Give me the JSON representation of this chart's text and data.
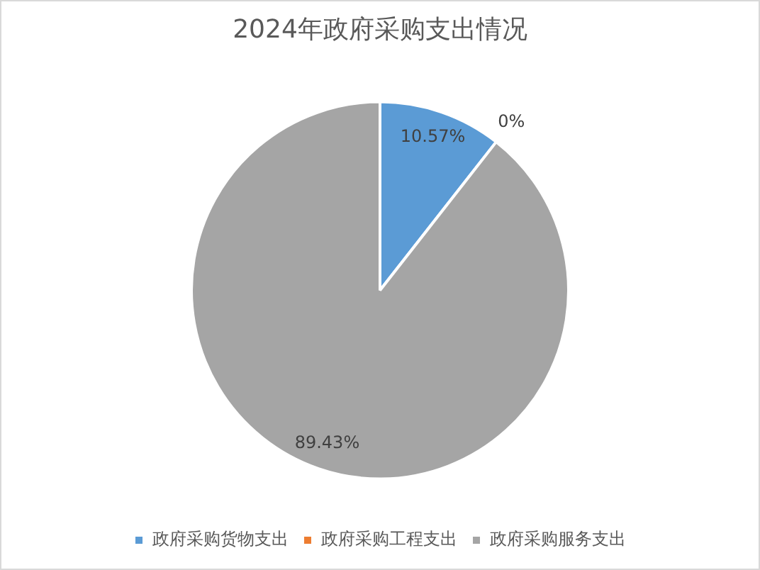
{
  "chart_data": {
    "type": "pie",
    "title": "2024年政府采购支出情况",
    "categories": [
      "政府采购货物支出",
      "政府采购工程支出",
      "政府采购服务支出"
    ],
    "values": [
      10.57,
      0,
      89.43
    ],
    "colors": [
      "#5b9bd5",
      "#ed7d31",
      "#a5a5a5"
    ],
    "value_labels": [
      "10.57%",
      "0%",
      "89.43%"
    ],
    "legend": "bottom"
  }
}
